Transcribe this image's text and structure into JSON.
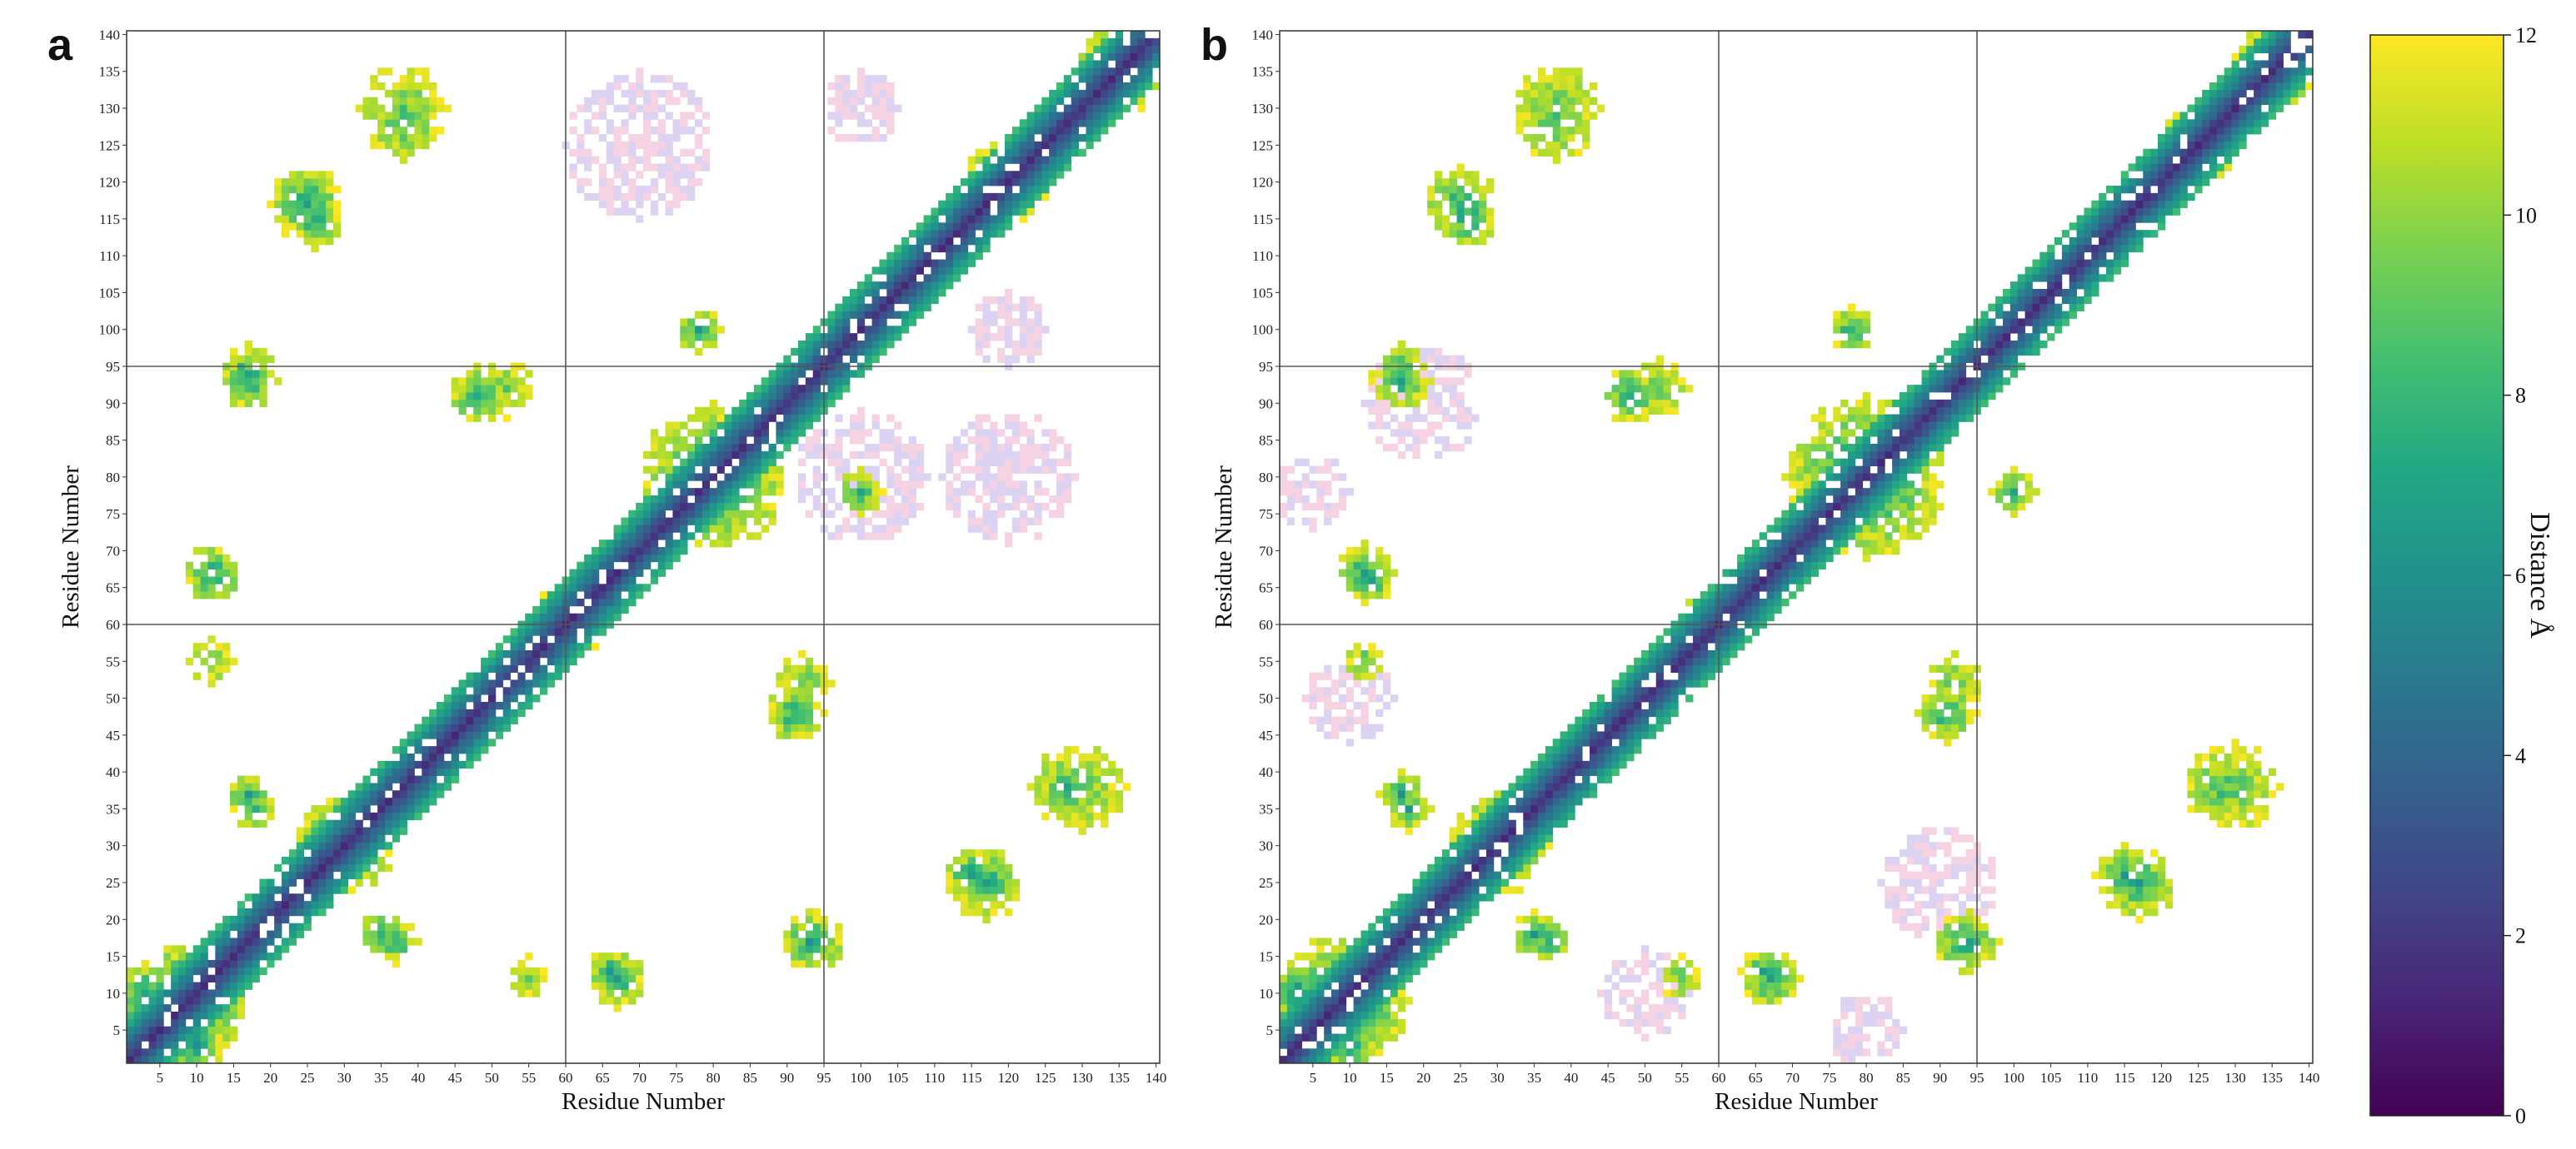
{
  "chart_data": {
    "type": "heatmap",
    "colormap": "viridis",
    "colorbar": {
      "title": "Distance Å",
      "min": 0,
      "max": 12,
      "ticks": [
        "0",
        "2",
        "4",
        "6",
        "8",
        "10",
        "12"
      ],
      "placement": "right"
    },
    "cell_fill_rule": "cells with distance greater than 12 Å are left blank; light pink/lavender cells mark extra low-density contacts",
    "domain_boundaries": [
      60,
      95
    ],
    "panels": [
      {
        "label": "a",
        "xlabel": "Residue Number",
        "ylabel": "Residue Number",
        "xlim": [
          1,
          140
        ],
        "ylim": [
          1,
          140
        ],
        "x_ticks": [
          "5",
          "10",
          "15",
          "20",
          "25",
          "30",
          "35",
          "40",
          "45",
          "50",
          "55",
          "60",
          "65",
          "70",
          "75",
          "80",
          "85",
          "90",
          "95",
          "100",
          "105",
          "110",
          "115",
          "120",
          "125",
          "130",
          "135",
          "140"
        ],
        "y_ticks": [
          "5",
          "10",
          "15",
          "20",
          "25",
          "30",
          "35",
          "40",
          "45",
          "50",
          "55",
          "60",
          "65",
          "70",
          "75",
          "80",
          "85",
          "90",
          "95",
          "100",
          "105",
          "110",
          "115",
          "120",
          "125",
          "130",
          "135",
          "140"
        ],
        "contact_blobs": [
          {
            "x": 9,
            "y": 9,
            "r": 8,
            "d": 5
          },
          {
            "x": 30,
            "y": 30,
            "r": 7,
            "d": 6
          },
          {
            "x": 60,
            "y": 60,
            "r": 5,
            "d": 5
          },
          {
            "x": 80,
            "y": 80,
            "r": 10,
            "d": 6
          },
          {
            "x": 120,
            "y": 120,
            "r": 6,
            "d": 7
          },
          {
            "x": 135,
            "y": 135,
            "r": 6,
            "d": 7
          },
          {
            "x": 12,
            "y": 67,
            "r": 4,
            "d": 7
          },
          {
            "x": 17,
            "y": 94,
            "r": 4,
            "d": 7
          },
          {
            "x": 25,
            "y": 117,
            "r": 5,
            "d": 7
          },
          {
            "x": 38,
            "y": 128,
            "r": 5,
            "d": 8
          },
          {
            "x": 12,
            "y": 55,
            "r": 3,
            "d": 9
          },
          {
            "x": 17,
            "y": 37,
            "r": 3,
            "d": 7
          },
          {
            "x": 35,
            "y": 18,
            "r": 3,
            "d": 7
          },
          {
            "x": 66,
            "y": 13,
            "r": 3,
            "d": 7
          },
          {
            "x": 93,
            "y": 17,
            "r": 4,
            "d": 7
          },
          {
            "x": 91,
            "y": 48,
            "r": 4,
            "d": 7
          },
          {
            "x": 115,
            "y": 26,
            "r": 4,
            "d": 7
          },
          {
            "x": 130,
            "y": 38,
            "r": 6,
            "d": 9
          },
          {
            "x": 52,
            "y": 92,
            "r": 4,
            "d": 9
          },
          {
            "x": 78,
            "y": 100,
            "r": 3,
            "d": 7
          },
          {
            "x": 3,
            "y": 10,
            "r": 4,
            "d": 6
          }
        ],
        "low_density_regions": [
          {
            "x": 70,
            "y": 125,
            "r": 10
          },
          {
            "x": 100,
            "y": 80,
            "r": 9
          },
          {
            "x": 120,
            "y": 80,
            "r": 9
          },
          {
            "x": 100,
            "y": 130,
            "r": 5
          },
          {
            "x": 120,
            "y": 100,
            "r": 5
          }
        ]
      },
      {
        "label": "b",
        "xlabel": "Residue Number",
        "ylabel": "Residue Number",
        "xlim": [
          1,
          140
        ],
        "ylim": [
          1,
          140
        ],
        "x_ticks": [
          "5",
          "10",
          "15",
          "20",
          "25",
          "30",
          "35",
          "40",
          "45",
          "50",
          "55",
          "60",
          "65",
          "70",
          "75",
          "80",
          "85",
          "90",
          "95",
          "100",
          "105",
          "110",
          "115",
          "120",
          "125",
          "130",
          "135",
          "140"
        ],
        "y_ticks": [
          "5",
          "10",
          "15",
          "20",
          "25",
          "30",
          "35",
          "40",
          "45",
          "50",
          "55",
          "60",
          "65",
          "70",
          "75",
          "80",
          "85",
          "90",
          "95",
          "100",
          "105",
          "110",
          "115",
          "120",
          "125",
          "130",
          "135",
          "140"
        ],
        "contact_blobs": [
          {
            "x": 9,
            "y": 9,
            "r": 9,
            "d": 5
          },
          {
            "x": 30,
            "y": 30,
            "r": 7,
            "d": 6
          },
          {
            "x": 60,
            "y": 60,
            "r": 5,
            "d": 5
          },
          {
            "x": 80,
            "y": 80,
            "r": 11,
            "d": 6
          },
          {
            "x": 125,
            "y": 125,
            "r": 5,
            "d": 7
          },
          {
            "x": 135,
            "y": 135,
            "r": 6,
            "d": 7
          },
          {
            "x": 12,
            "y": 67,
            "r": 4,
            "d": 7
          },
          {
            "x": 17,
            "y": 94,
            "r": 4,
            "d": 7
          },
          {
            "x": 25,
            "y": 117,
            "r": 5,
            "d": 7
          },
          {
            "x": 38,
            "y": 128,
            "r": 5,
            "d": 8
          },
          {
            "x": 12,
            "y": 55,
            "r": 3,
            "d": 9
          },
          {
            "x": 17,
            "y": 37,
            "r": 3,
            "d": 7
          },
          {
            "x": 35,
            "y": 18,
            "r": 3,
            "d": 7
          },
          {
            "x": 66,
            "y": 13,
            "r": 3,
            "d": 7
          },
          {
            "x": 93,
            "y": 17,
            "r": 4,
            "d": 7
          },
          {
            "x": 91,
            "y": 48,
            "r": 4,
            "d": 7
          },
          {
            "x": 115,
            "y": 26,
            "r": 4,
            "d": 7
          },
          {
            "x": 130,
            "y": 38,
            "r": 6,
            "d": 9
          },
          {
            "x": 52,
            "y": 92,
            "r": 4,
            "d": 9
          },
          {
            "x": 78,
            "y": 100,
            "r": 3,
            "d": 7
          },
          {
            "x": 100,
            "y": 78,
            "r": 3,
            "d": 7
          },
          {
            "x": 3,
            "y": 10,
            "r": 4,
            "d": 6
          }
        ],
        "low_density_regions": [
          {
            "x": 20,
            "y": 90,
            "r": 8
          },
          {
            "x": 90,
            "y": 25,
            "r": 8
          },
          {
            "x": 10,
            "y": 50,
            "r": 6
          },
          {
            "x": 50,
            "y": 10,
            "r": 6
          },
          {
            "x": 80,
            "y": 5,
            "r": 5
          },
          {
            "x": 5,
            "y": 78,
            "r": 5
          }
        ]
      }
    ]
  }
}
